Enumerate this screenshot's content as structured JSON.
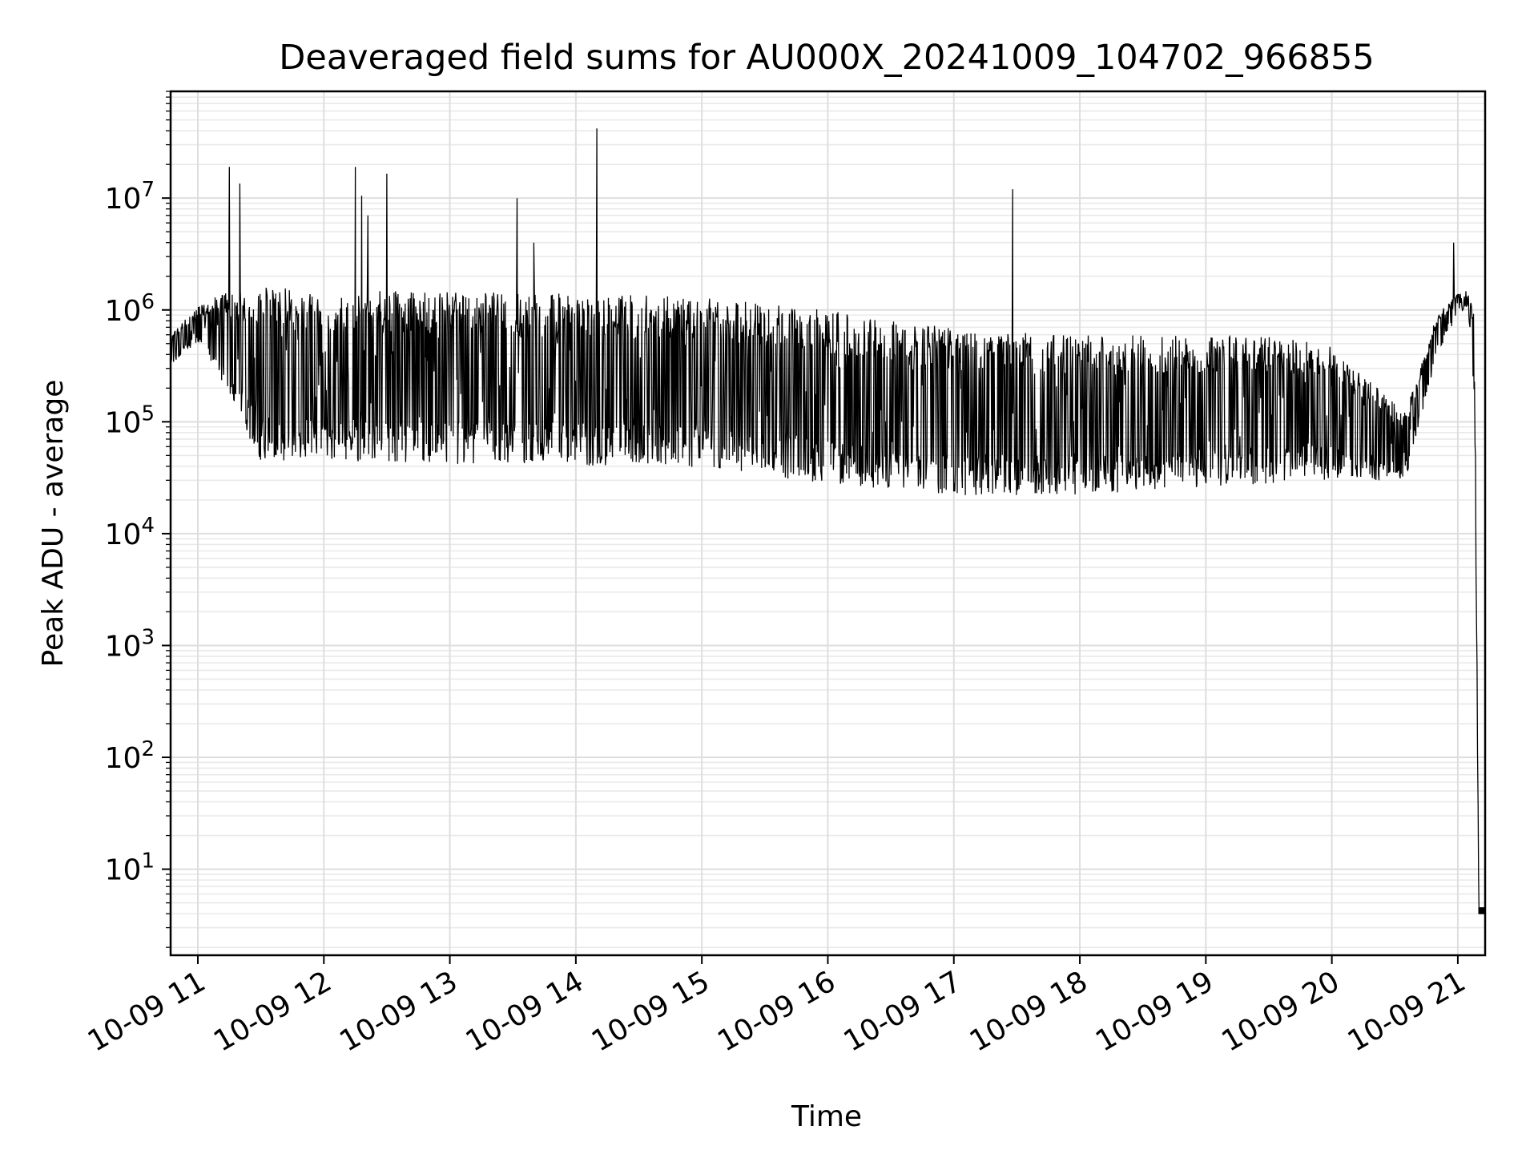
{
  "chart_data": {
    "type": "line",
    "title": "Deaveraged field sums for AU000X_20241009_104702_966855",
    "xlabel": "Time",
    "ylabel": "Peak ADU - average",
    "y_scale": "log",
    "ylim": [
      1.7,
      90000000
    ],
    "xlim": [
      "2024-10-09T10:47:02",
      "2024-10-09T21:13:00"
    ],
    "grid": "major and minor",
    "line_color": "#000000",
    "y_ticks": [
      {
        "base": "10",
        "exp": "1",
        "value": 10
      },
      {
        "base": "10",
        "exp": "2",
        "value": 100
      },
      {
        "base": "10",
        "exp": "3",
        "value": 1000
      },
      {
        "base": "10",
        "exp": "4",
        "value": 10000
      },
      {
        "base": "10",
        "exp": "5",
        "value": 100000
      },
      {
        "base": "10",
        "exp": "6",
        "value": 1000000
      },
      {
        "base": "10",
        "exp": "7",
        "value": 10000000
      }
    ],
    "x_ticks": [
      {
        "label": "10-09 11",
        "time": "2024-10-09T11:00"
      },
      {
        "label": "10-09 12",
        "time": "2024-10-09T12:00"
      },
      {
        "label": "10-09 13",
        "time": "2024-10-09T13:00"
      },
      {
        "label": "10-09 14",
        "time": "2024-10-09T14:00"
      },
      {
        "label": "10-09 15",
        "time": "2024-10-09T15:00"
      },
      {
        "label": "10-09 16",
        "time": "2024-10-09T16:00"
      },
      {
        "label": "10-09 17",
        "time": "2024-10-09T17:00"
      },
      {
        "label": "10-09 18",
        "time": "2024-10-09T18:00"
      },
      {
        "label": "10-09 19",
        "time": "2024-10-09T19:00"
      },
      {
        "label": "10-09 20",
        "time": "2024-10-09T20:00"
      },
      {
        "label": "10-09 21",
        "time": "2024-10-09T21:00"
      }
    ],
    "envelope": [
      {
        "time": "2024-10-09T10:47",
        "low": 320000,
        "high": 600000
      },
      {
        "time": "2024-10-09T11:00",
        "low": 500000,
        "high": 1100000
      },
      {
        "time": "2024-10-09T11:12",
        "low": 200000,
        "high": 1400000
      },
      {
        "time": "2024-10-09T11:30",
        "low": 45000,
        "high": 1600000
      },
      {
        "time": "2024-10-09T12:00",
        "low": 45000,
        "high": 1500000
      },
      {
        "time": "2024-10-09T13:00",
        "low": 42000,
        "high": 1450000
      },
      {
        "time": "2024-10-09T14:00",
        "low": 40000,
        "high": 1400000
      },
      {
        "time": "2024-10-09T15:00",
        "low": 38000,
        "high": 1300000
      },
      {
        "time": "2024-10-09T16:00",
        "low": 28000,
        "high": 1000000
      },
      {
        "time": "2024-10-09T17:00",
        "low": 22000,
        "high": 700000
      },
      {
        "time": "2024-10-09T18:00",
        "low": 22000,
        "high": 600000
      },
      {
        "time": "2024-10-09T19:00",
        "low": 26000,
        "high": 600000
      },
      {
        "time": "2024-10-09T19:55",
        "low": 30000,
        "high": 550000
      },
      {
        "time": "2024-10-09T20:35",
        "low": 30000,
        "high": 120000
      },
      {
        "time": "2024-10-09T20:50",
        "low": 400000,
        "high": 900000
      },
      {
        "time": "2024-10-09T21:00",
        "low": 900000,
        "high": 1400000
      },
      {
        "time": "2024-10-09T21:05",
        "low": 1000000,
        "high": 1500000
      },
      {
        "time": "2024-10-09T21:08",
        "low": 150000,
        "high": 900000
      },
      {
        "time": "2024-10-09T21:10",
        "low": 4,
        "high": 4
      },
      {
        "time": "2024-10-09T21:13",
        "low": 4,
        "high": 4
      }
    ],
    "spikes": [
      {
        "time": "2024-10-09T11:15",
        "value": 19000000
      },
      {
        "time": "2024-10-09T11:20",
        "value": 13500000
      },
      {
        "time": "2024-10-09T12:15",
        "value": 19000000
      },
      {
        "time": "2024-10-09T12:18",
        "value": 10500000
      },
      {
        "time": "2024-10-09T12:21",
        "value": 7000000
      },
      {
        "time": "2024-10-09T12:30",
        "value": 16500000
      },
      {
        "time": "2024-10-09T13:32",
        "value": 10000000
      },
      {
        "time": "2024-10-09T13:40",
        "value": 4000000
      },
      {
        "time": "2024-10-09T14:10",
        "value": 42000000
      },
      {
        "time": "2024-10-09T17:28",
        "value": 12000000
      },
      {
        "time": "2024-10-09T20:58",
        "value": 4000000
      }
    ]
  }
}
